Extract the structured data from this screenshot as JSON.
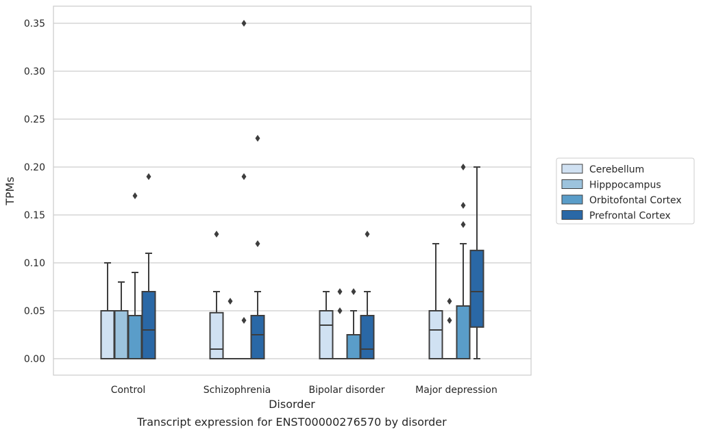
{
  "chart_data": {
    "type": "box",
    "xlabel": "Disorder",
    "ylabel": "TPMs",
    "caption": "Transcript expression for ENST00000276570 by disorder",
    "ylim": [
      -0.017,
      0.367
    ],
    "yticks": [
      0.0,
      0.05,
      0.1,
      0.15,
      0.2,
      0.25,
      0.3,
      0.35
    ],
    "ytick_labels": [
      "0.00",
      "0.05",
      "0.10",
      "0.15",
      "0.20",
      "0.25",
      "0.30",
      "0.35"
    ],
    "grid": "horizontal",
    "legend_position": "right",
    "categories": [
      "Control",
      "Schizophrenia",
      "Bipolar disorder",
      "Major depression"
    ],
    "series": [
      {
        "name": "Cerebellum",
        "color": "#d0e1f2",
        "boxes": [
          {
            "whisker_low": 0.0,
            "q1": 0.0,
            "median": 0.05,
            "q3": 0.05,
            "whisker_high": 0.1,
            "outliers": []
          },
          {
            "whisker_low": 0.0,
            "q1": 0.0,
            "median": 0.01,
            "q3": 0.048,
            "whisker_high": 0.07,
            "outliers": [
              0.13
            ]
          },
          {
            "whisker_low": 0.0,
            "q1": 0.0,
            "median": 0.035,
            "q3": 0.05,
            "whisker_high": 0.07,
            "outliers": []
          },
          {
            "whisker_low": 0.0,
            "q1": 0.0,
            "median": 0.03,
            "q3": 0.05,
            "whisker_high": 0.12,
            "outliers": []
          }
        ]
      },
      {
        "name": "Hipppocampus",
        "color": "#9cc3dd",
        "boxes": [
          {
            "whisker_low": 0.0,
            "q1": 0.0,
            "median": 0.05,
            "q3": 0.05,
            "whisker_high": 0.08,
            "outliers": []
          },
          {
            "whisker_low": 0.0,
            "q1": 0.0,
            "median": 0.0,
            "q3": 0.0,
            "whisker_high": 0.0,
            "outliers": [
              0.06
            ]
          },
          {
            "whisker_low": 0.0,
            "q1": 0.0,
            "median": 0.0,
            "q3": 0.0,
            "whisker_high": 0.0,
            "outliers": [
              0.05,
              0.07
            ]
          },
          {
            "whisker_low": 0.0,
            "q1": 0.0,
            "median": 0.0,
            "q3": 0.0,
            "whisker_high": 0.0,
            "outliers": [
              0.04,
              0.06
            ]
          }
        ]
      },
      {
        "name": "Orbitofontal Cortex",
        "color": "#5a9dc9",
        "boxes": [
          {
            "whisker_low": 0.0,
            "q1": 0.0,
            "median": 0.045,
            "q3": 0.045,
            "whisker_high": 0.09,
            "outliers": [
              0.17
            ]
          },
          {
            "whisker_low": 0.0,
            "q1": 0.0,
            "median": 0.0,
            "q3": 0.0,
            "whisker_high": 0.0,
            "outliers": [
              0.35,
              0.19,
              0.04
            ]
          },
          {
            "whisker_low": 0.0,
            "q1": 0.0,
            "median": 0.0,
            "q3": 0.025,
            "whisker_high": 0.05,
            "outliers": [
              0.07
            ]
          },
          {
            "whisker_low": 0.0,
            "q1": 0.0,
            "median": 0.0,
            "q3": 0.055,
            "whisker_high": 0.12,
            "outliers": [
              0.14,
              0.16,
              0.2
            ]
          }
        ]
      },
      {
        "name": "Prefrontal Cortex",
        "color": "#2a68a6",
        "boxes": [
          {
            "whisker_low": 0.0,
            "q1": 0.0,
            "median": 0.03,
            "q3": 0.07,
            "whisker_high": 0.11,
            "outliers": [
              0.19
            ]
          },
          {
            "whisker_low": 0.0,
            "q1": 0.0,
            "median": 0.025,
            "q3": 0.045,
            "whisker_high": 0.07,
            "outliers": [
              0.12,
              0.23
            ]
          },
          {
            "whisker_low": 0.0,
            "q1": 0.0,
            "median": 0.01,
            "q3": 0.045,
            "whisker_high": 0.07,
            "outliers": [
              0.13
            ]
          },
          {
            "whisker_low": 0.0,
            "q1": 0.033,
            "median": 0.07,
            "q3": 0.113,
            "whisker_high": 0.2,
            "outliers": []
          }
        ]
      }
    ]
  }
}
